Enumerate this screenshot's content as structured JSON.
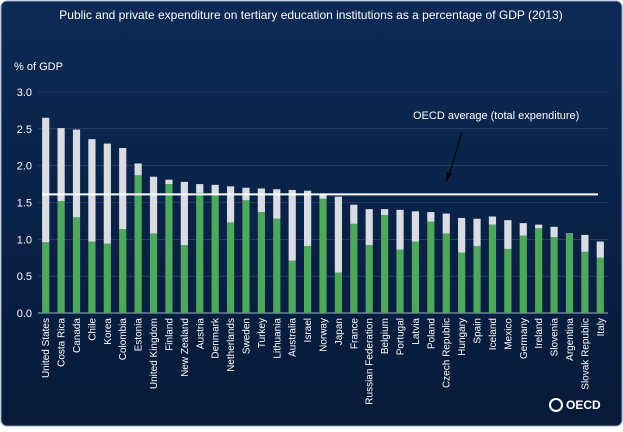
{
  "chart_data": {
    "type": "stacked_bar",
    "title": "Public and private expenditure on tertiary education institutions as a percentage of GDP  (2013)",
    "y_label": "% of GDP",
    "logo": "OECD",
    "categories": [
      "United States",
      "Costa Rica",
      "Canada",
      "Chile",
      "Korea",
      "Colombia",
      "Estonia",
      "United Kingdom",
      "Finland",
      "New Zealand",
      "Austria",
      "Denmark",
      "Netherlands",
      "Sweden",
      "Turkey",
      "Lithuania",
      "Australia",
      "Israel",
      "Norway",
      "Japan",
      "France",
      "Russian Federation",
      "Belgium",
      "Portugal",
      "Latvia",
      "Poland",
      "Czech Republic",
      "Hungary",
      "Spain",
      "Iceland",
      "Mexico",
      "Germany",
      "Ireland",
      "Slovenia",
      "Argentina",
      "Slovak Republic",
      "Italy"
    ],
    "series": [
      {
        "color": "#4ea85c",
        "values": [
          0.96,
          1.52,
          1.3,
          0.97,
          0.94,
          1.14,
          1.87,
          1.08,
          1.75,
          0.92,
          1.63,
          1.62,
          1.23,
          1.53,
          1.37,
          1.28,
          0.71,
          0.91,
          1.55,
          0.55,
          1.21,
          0.92,
          1.33,
          0.86,
          0.97,
          1.24,
          1.08,
          0.82,
          0.91,
          1.2,
          0.87,
          1.05,
          1.15,
          1.03,
          1.07,
          0.83,
          0.75
        ]
      },
      {
        "color": "#d9dde3",
        "values": [
          1.69,
          0.99,
          1.19,
          1.39,
          1.36,
          1.1,
          0.16,
          0.77,
          0.06,
          0.86,
          0.12,
          0.12,
          0.49,
          0.17,
          0.32,
          0.4,
          0.96,
          0.75,
          0.06,
          1.03,
          0.26,
          0.49,
          0.08,
          0.54,
          0.41,
          0.13,
          0.27,
          0.47,
          0.37,
          0.11,
          0.39,
          0.17,
          0.05,
          0.14,
          0.01,
          0.23,
          0.22
        ]
      }
    ],
    "reference_line": {
      "label": "OECD average (total expenditure)",
      "value": 1.61,
      "color": "#ffffff"
    },
    "ylim": [
      0,
      3
    ],
    "yticks": [
      {
        "value": 0,
        "label": "0.0"
      },
      {
        "value": 0.5,
        "label": "0.5"
      },
      {
        "value": 1,
        "label": "1.0"
      },
      {
        "value": 1.5,
        "label": "1.5"
      },
      {
        "value": 2,
        "label": "2.0"
      },
      {
        "value": 2.5,
        "label": "2.5"
      },
      {
        "value": 3,
        "label": "3.0"
      }
    ],
    "grid": true
  }
}
